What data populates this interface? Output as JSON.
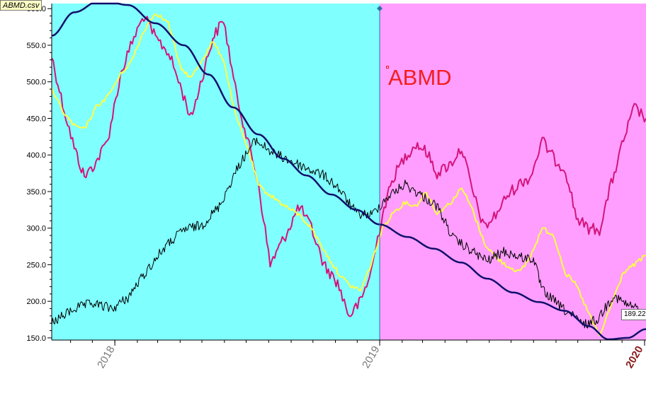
{
  "file_tag": "ABMD.csv",
  "symbol_label": "ABMD",
  "last_price_label": "189.22",
  "colors": {
    "panel_left": "#80ffff",
    "panel_right": "#ff9eff",
    "price": "#000000",
    "magenta_line": "#d3157a",
    "yellow_line": "#ffff44",
    "cycle_curve": "#10106c",
    "divider": "#2c74a8",
    "axis": "#000000"
  },
  "chart_data": {
    "type": "line",
    "title": "ABMD",
    "x_axis": {
      "type": "date",
      "range": [
        "2017-10-06",
        "2020-01-03"
      ],
      "ticks": [
        {
          "date": "2018-01-01",
          "label": "2018"
        },
        {
          "date": "2019-01-01",
          "label": "2019"
        },
        {
          "date": "2020-01-01",
          "label": "2020"
        }
      ]
    },
    "y_axis": {
      "range": [
        147,
        607
      ],
      "ticks": [
        150.0,
        200.0,
        250.0,
        300.0,
        350.0,
        400.0,
        450.0,
        500.0,
        550.0,
        600.0
      ],
      "tick_labels": [
        "150.0",
        "200.0",
        "250.0",
        "300.0",
        "350.0",
        "400.0",
        "450.0",
        "500.0",
        "550.0",
        "600.0"
      ]
    },
    "divider_date": "2019-01-01",
    "background_regions": [
      {
        "from": "2017-10-06",
        "to": "2019-01-01",
        "color": "#80ffff"
      },
      {
        "from": "2019-01-01",
        "to": "2020-01-03",
        "color": "#ff9eff"
      }
    ],
    "last_value": 189.22,
    "series": [
      {
        "key": "price",
        "style": "black",
        "points": [
          [
            "2017-10-06",
            170
          ],
          [
            "2017-11-06",
            190
          ],
          [
            "2017-12-01",
            197
          ],
          [
            "2017-12-29",
            190
          ],
          [
            "2018-01-19",
            205
          ],
          [
            "2018-02-09",
            235
          ],
          [
            "2018-03-09",
            272
          ],
          [
            "2018-04-06",
            298
          ],
          [
            "2018-05-01",
            304
          ],
          [
            "2018-05-25",
            330
          ],
          [
            "2018-06-22",
            388
          ],
          [
            "2018-07-14",
            420
          ],
          [
            "2018-08-08",
            402
          ],
          [
            "2018-08-31",
            392
          ],
          [
            "2018-09-22",
            382
          ],
          [
            "2018-10-16",
            372
          ],
          [
            "2018-11-04",
            356
          ],
          [
            "2018-11-30",
            320
          ],
          [
            "2018-12-21",
            318
          ],
          [
            "2019-01-11",
            342
          ],
          [
            "2019-02-05",
            360
          ],
          [
            "2019-02-27",
            345
          ],
          [
            "2019-03-21",
            330
          ],
          [
            "2019-04-13",
            285
          ],
          [
            "2019-05-06",
            270
          ],
          [
            "2019-05-29",
            255
          ],
          [
            "2019-06-21",
            268
          ],
          [
            "2019-07-14",
            260
          ],
          [
            "2019-08-01",
            258
          ],
          [
            "2019-08-13",
            215
          ],
          [
            "2019-09-10",
            190
          ],
          [
            "2019-10-09",
            168
          ],
          [
            "2019-10-28",
            175
          ],
          [
            "2019-11-19",
            208
          ],
          [
            "2019-12-06",
            196
          ],
          [
            "2019-12-26",
            189
          ]
        ]
      },
      {
        "key": "magenta",
        "style": "magenta",
        "points": [
          [
            "2017-10-06",
            535
          ],
          [
            "2017-10-21",
            470
          ],
          [
            "2017-11-06",
            410
          ],
          [
            "2017-11-20",
            370
          ],
          [
            "2017-12-06",
            390
          ],
          [
            "2017-12-22",
            420
          ],
          [
            "2018-01-09",
            510
          ],
          [
            "2018-01-25",
            555
          ],
          [
            "2018-02-10",
            590
          ],
          [
            "2018-02-26",
            560
          ],
          [
            "2018-03-16",
            540
          ],
          [
            "2018-04-01",
            495
          ],
          [
            "2018-04-16",
            450
          ],
          [
            "2018-05-01",
            505
          ],
          [
            "2018-05-16",
            560
          ],
          [
            "2018-05-31",
            585
          ],
          [
            "2018-06-16",
            490
          ],
          [
            "2018-07-03",
            420
          ],
          [
            "2018-07-18",
            360
          ],
          [
            "2018-08-03",
            250
          ],
          [
            "2018-08-24",
            290
          ],
          [
            "2018-09-12",
            330
          ],
          [
            "2018-09-29",
            300
          ],
          [
            "2018-10-16",
            250
          ],
          [
            "2018-11-04",
            225
          ],
          [
            "2018-11-20",
            180
          ],
          [
            "2018-12-06",
            200
          ],
          [
            "2018-12-20",
            240
          ],
          [
            "2019-01-05",
            320
          ],
          [
            "2019-01-20",
            370
          ],
          [
            "2019-02-05",
            398
          ],
          [
            "2019-02-20",
            415
          ],
          [
            "2019-03-06",
            405
          ],
          [
            "2019-03-21",
            375
          ],
          [
            "2019-04-09",
            388
          ],
          [
            "2019-04-24",
            410
          ],
          [
            "2019-05-09",
            350
          ],
          [
            "2019-05-25",
            300
          ],
          [
            "2019-06-10",
            318
          ],
          [
            "2019-06-26",
            345
          ],
          [
            "2019-07-14",
            362
          ],
          [
            "2019-07-28",
            370
          ],
          [
            "2019-08-13",
            420
          ],
          [
            "2019-08-29",
            395
          ],
          [
            "2019-09-14",
            380
          ],
          [
            "2019-09-29",
            315
          ],
          [
            "2019-10-14",
            300
          ],
          [
            "2019-10-31",
            298
          ],
          [
            "2019-11-16",
            360
          ],
          [
            "2019-12-03",
            420
          ],
          [
            "2019-12-18",
            465
          ],
          [
            "2020-01-03",
            450
          ]
        ]
      },
      {
        "key": "yellow",
        "style": "yellow",
        "points": [
          [
            "2017-10-06",
            490
          ],
          [
            "2017-10-21",
            460
          ],
          [
            "2017-11-06",
            440
          ],
          [
            "2017-11-20",
            435
          ],
          [
            "2017-12-06",
            465
          ],
          [
            "2017-12-22",
            480
          ],
          [
            "2018-01-09",
            510
          ],
          [
            "2018-01-25",
            530
          ],
          [
            "2018-02-10",
            570
          ],
          [
            "2018-02-26",
            595
          ],
          [
            "2018-03-16",
            580
          ],
          [
            "2018-04-01",
            520
          ],
          [
            "2018-04-16",
            505
          ],
          [
            "2018-05-01",
            530
          ],
          [
            "2018-05-16",
            555
          ],
          [
            "2018-05-31",
            530
          ],
          [
            "2018-06-16",
            455
          ],
          [
            "2018-07-03",
            410
          ],
          [
            "2018-07-18",
            358
          ],
          [
            "2018-08-03",
            345
          ],
          [
            "2018-08-24",
            330
          ],
          [
            "2018-09-12",
            318
          ],
          [
            "2018-09-29",
            300
          ],
          [
            "2018-10-16",
            270
          ],
          [
            "2018-11-04",
            240
          ],
          [
            "2018-11-20",
            222
          ],
          [
            "2018-12-06",
            215
          ],
          [
            "2018-12-20",
            250
          ],
          [
            "2019-01-05",
            300
          ],
          [
            "2019-01-20",
            322
          ],
          [
            "2019-02-05",
            335
          ],
          [
            "2019-02-20",
            330
          ],
          [
            "2019-03-06",
            350
          ],
          [
            "2019-03-21",
            320
          ],
          [
            "2019-04-09",
            335
          ],
          [
            "2019-04-24",
            355
          ],
          [
            "2019-05-09",
            325
          ],
          [
            "2019-05-25",
            280
          ],
          [
            "2019-06-10",
            260
          ],
          [
            "2019-06-26",
            248
          ],
          [
            "2019-07-14",
            240
          ],
          [
            "2019-07-28",
            262
          ],
          [
            "2019-08-13",
            300
          ],
          [
            "2019-08-29",
            290
          ],
          [
            "2019-09-14",
            238
          ],
          [
            "2019-09-29",
            222
          ],
          [
            "2019-10-14",
            188
          ],
          [
            "2019-10-31",
            152
          ],
          [
            "2019-11-16",
            195
          ],
          [
            "2019-12-03",
            240
          ],
          [
            "2019-12-18",
            250
          ],
          [
            "2020-01-03",
            263
          ]
        ]
      },
      {
        "key": "cycle",
        "style": "navy",
        "points": [
          [
            "2017-10-06",
            563
          ],
          [
            "2017-11-06",
            595
          ],
          [
            "2017-12-13",
            612
          ],
          [
            "2018-01-19",
            605
          ],
          [
            "2018-02-26",
            580
          ],
          [
            "2018-04-06",
            550
          ],
          [
            "2018-05-10",
            510
          ],
          [
            "2018-06-13",
            465
          ],
          [
            "2018-07-18",
            428
          ],
          [
            "2018-08-21",
            395
          ],
          [
            "2018-09-22",
            372
          ],
          [
            "2018-10-26",
            346
          ],
          [
            "2018-11-30",
            325
          ],
          [
            "2019-01-01",
            305
          ],
          [
            "2019-02-08",
            288
          ],
          [
            "2019-03-16",
            272
          ],
          [
            "2019-04-23",
            253
          ],
          [
            "2019-05-29",
            231
          ],
          [
            "2019-07-04",
            212
          ],
          [
            "2019-08-08",
            199
          ],
          [
            "2019-09-13",
            187
          ],
          [
            "2019-10-16",
            166
          ],
          [
            "2019-11-12",
            148
          ],
          [
            "2019-12-09",
            150
          ],
          [
            "2020-01-03",
            162
          ]
        ]
      }
    ]
  }
}
